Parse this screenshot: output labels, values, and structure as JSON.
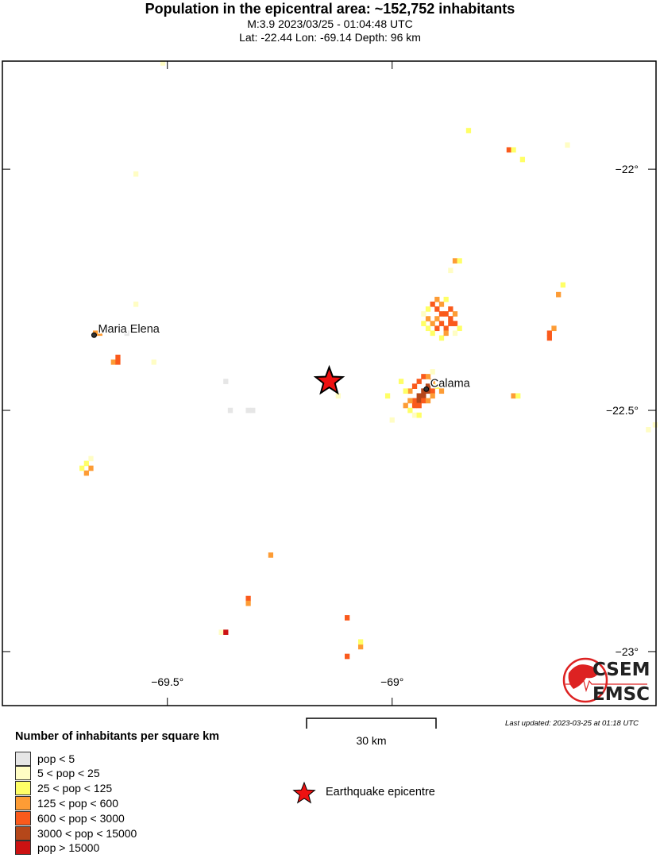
{
  "header": {
    "title": "Population in the epicentral area: ~152,752 inhabitants",
    "event_line": "M:3.9 2023/03/25 - 01:04:48 UTC",
    "location_line": "Lat: -22.44 Lon: -69.14 Depth: 96 km"
  },
  "map": {
    "extent": {
      "lon": [
        -69.867,
        -68.413
      ],
      "lat": [
        -23.112,
        -21.776
      ]
    },
    "lon_ticks": [
      {
        "value": -69.5,
        "label": "−69.5°"
      },
      {
        "value": -69.0,
        "label": "−69°"
      }
    ],
    "lat_ticks": [
      {
        "value": -22.0,
        "label": "−22°"
      },
      {
        "value": -22.5,
        "label": "−22.5°"
      },
      {
        "value": -23.0,
        "label": "−23°"
      }
    ],
    "epicenter": {
      "lon": -69.14,
      "lat": -22.44,
      "color": "#ee1111"
    },
    "cities": [
      {
        "name": "Maria Elena",
        "lon": -69.663,
        "lat": -22.344
      },
      {
        "name": "Calama",
        "lon": -68.924,
        "lat": -22.456
      }
    ],
    "cell_size_deg": 0.01,
    "cells": [
      [
        -68.92,
        -22.45,
        5
      ],
      [
        -68.93,
        -22.46,
        5
      ],
      [
        -68.94,
        -22.47,
        5
      ],
      [
        -68.93,
        -22.47,
        5
      ],
      [
        -68.92,
        -22.46,
        5
      ],
      [
        -68.91,
        -22.46,
        4
      ],
      [
        -68.95,
        -22.48,
        4
      ],
      [
        -68.94,
        -22.48,
        5
      ],
      [
        -68.93,
        -22.48,
        4
      ],
      [
        -68.95,
        -22.49,
        4
      ],
      [
        -68.94,
        -22.49,
        4
      ],
      [
        -68.96,
        -22.48,
        3
      ],
      [
        -68.96,
        -22.46,
        3
      ],
      [
        -68.95,
        -22.45,
        4
      ],
      [
        -68.94,
        -22.44,
        4
      ],
      [
        -68.93,
        -22.43,
        4
      ],
      [
        -68.92,
        -22.43,
        3
      ],
      [
        -68.91,
        -22.44,
        3
      ],
      [
        -68.9,
        -22.45,
        2
      ],
      [
        -68.97,
        -22.46,
        2
      ],
      [
        -68.97,
        -22.49,
        3
      ],
      [
        -68.96,
        -22.5,
        2
      ],
      [
        -68.95,
        -22.51,
        1
      ],
      [
        -68.94,
        -22.51,
        2
      ],
      [
        -68.98,
        -22.44,
        2
      ],
      [
        -68.91,
        -22.47,
        3
      ],
      [
        -68.92,
        -22.48,
        3
      ],
      [
        -68.91,
        -22.42,
        1
      ],
      [
        -69.01,
        -22.47,
        2
      ],
      [
        -69.0,
        -22.52,
        1
      ],
      [
        -68.89,
        -22.46,
        3
      ],
      [
        -68.91,
        -22.28,
        4
      ],
      [
        -68.9,
        -22.29,
        4
      ],
      [
        -68.89,
        -22.3,
        4
      ],
      [
        -68.88,
        -22.3,
        4
      ],
      [
        -68.87,
        -22.29,
        4
      ],
      [
        -68.86,
        -22.3,
        3
      ],
      [
        -68.86,
        -22.32,
        4
      ],
      [
        -68.87,
        -22.32,
        4
      ],
      [
        -68.88,
        -22.33,
        4
      ],
      [
        -68.9,
        -22.33,
        4
      ],
      [
        -68.91,
        -22.32,
        3
      ],
      [
        -68.92,
        -22.31,
        3
      ],
      [
        -68.93,
        -22.32,
        2
      ],
      [
        -68.9,
        -22.31,
        3
      ],
      [
        -68.89,
        -22.32,
        4
      ],
      [
        -68.87,
        -22.31,
        4
      ],
      [
        -68.89,
        -22.28,
        3
      ],
      [
        -68.88,
        -22.27,
        2
      ],
      [
        -68.9,
        -22.27,
        3
      ],
      [
        -68.91,
        -22.34,
        2
      ],
      [
        -68.89,
        -22.35,
        2
      ],
      [
        -68.88,
        -22.34,
        3
      ],
      [
        -68.85,
        -22.33,
        2
      ],
      [
        -68.86,
        -22.34,
        1
      ],
      [
        -68.92,
        -22.33,
        2
      ],
      [
        -68.92,
        -22.29,
        2
      ],
      [
        -68.93,
        -22.3,
        1
      ],
      [
        -68.86,
        -22.19,
        3
      ],
      [
        -68.87,
        -22.21,
        1
      ],
      [
        -68.85,
        -22.19,
        2
      ],
      [
        -68.65,
        -22.34,
        4
      ],
      [
        -68.65,
        -22.35,
        4
      ],
      [
        -68.64,
        -22.33,
        3
      ],
      [
        -68.62,
        -22.24,
        2
      ],
      [
        -68.63,
        -22.26,
        3
      ],
      [
        -68.73,
        -22.47,
        3
      ],
      [
        -68.72,
        -22.47,
        2
      ],
      [
        -68.415,
        -22.53,
        1
      ],
      [
        -68.43,
        -22.54,
        1
      ],
      [
        -68.83,
        -21.92,
        2
      ],
      [
        -68.74,
        -21.96,
        4
      ],
      [
        -68.73,
        -21.96,
        2
      ],
      [
        -68.71,
        -21.98,
        2
      ],
      [
        -68.61,
        -21.95,
        1
      ],
      [
        -69.57,
        -22.01,
        1
      ],
      [
        -69.66,
        -22.34,
        3
      ],
      [
        -69.65,
        -22.34,
        3
      ],
      [
        -69.61,
        -22.39,
        4
      ],
      [
        -69.62,
        -22.4,
        3
      ],
      [
        -69.61,
        -22.4,
        4
      ],
      [
        -69.53,
        -22.4,
        1
      ],
      [
        -69.57,
        -22.28,
        1
      ],
      [
        -69.59,
        -22.34,
        0
      ],
      [
        -69.68,
        -22.61,
        2
      ],
      [
        -69.67,
        -22.62,
        3
      ],
      [
        -69.68,
        -22.63,
        3
      ],
      [
        -69.67,
        -22.6,
        1
      ],
      [
        -69.69,
        -22.62,
        2
      ],
      [
        -69.37,
        -22.44,
        0
      ],
      [
        -69.36,
        -22.5,
        0
      ],
      [
        -69.32,
        -22.5,
        0
      ],
      [
        -69.31,
        -22.5,
        0
      ],
      [
        -69.51,
        -21.78,
        1
      ],
      [
        -69.12,
        -22.47,
        1
      ],
      [
        -69.27,
        -22.8,
        3
      ],
      [
        -69.32,
        -22.89,
        4
      ],
      [
        -69.32,
        -22.9,
        3
      ],
      [
        -69.1,
        -22.93,
        4
      ],
      [
        -69.38,
        -22.96,
        1
      ],
      [
        -69.37,
        -22.96,
        6
      ],
      [
        -69.07,
        -22.99,
        3
      ],
      [
        -69.07,
        -22.98,
        2
      ],
      [
        -69.1,
        -23.01,
        4
      ]
    ]
  },
  "scale_bar": {
    "label": "30 km"
  },
  "last_updated": "Last updated: 2023-03-25 at 01:18 UTC",
  "legend": {
    "title": "Number of inhabitants per square km",
    "classes": [
      {
        "label": "pop < 5",
        "color": "#e6e6e6"
      },
      {
        "label": "5 < pop < 25",
        "color": "#fffdc4"
      },
      {
        "label": "25 < pop < 125",
        "color": "#ffff66"
      },
      {
        "label": "125 < pop < 600",
        "color": "#fd9c35"
      },
      {
        "label": "600 < pop < 3000",
        "color": "#fa5a1c"
      },
      {
        "label": "3000 < pop < 15000",
        "color": "#b5471a"
      },
      {
        "label": "pop > 15000",
        "color": "#cc1212"
      }
    ],
    "epicentre_label": "Earthquake epicentre"
  },
  "logo": {
    "line1": "CSEM",
    "line2": "EMSC",
    "color": "#dd2222"
  }
}
